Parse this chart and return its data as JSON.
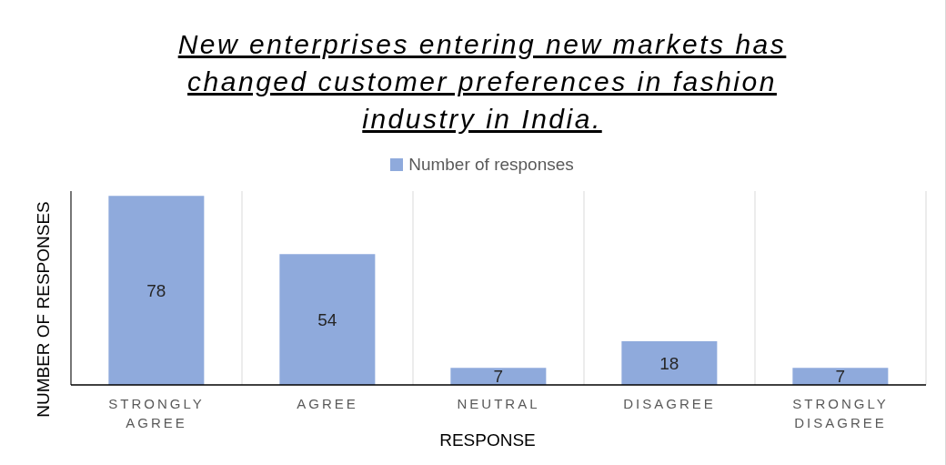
{
  "chart_data": {
    "type": "bar",
    "title": "New enterprises entering new markets has\nchanged customer preferences in fashion\nindustry in India.",
    "xlabel": "RESPONSE",
    "ylabel": "NUMBER OF RESPONSES",
    "categories": [
      "STRONGLY AGREE",
      "AGREE",
      "NEUTRAL",
      "DISAGREE",
      "STRONGLY DISAGREE"
    ],
    "series": [
      {
        "name": "Number of responses",
        "color": "#8faadc",
        "values": [
          78,
          54,
          7,
          18,
          7
        ]
      }
    ],
    "data_labels": true,
    "grid": "x",
    "legend": "top"
  }
}
